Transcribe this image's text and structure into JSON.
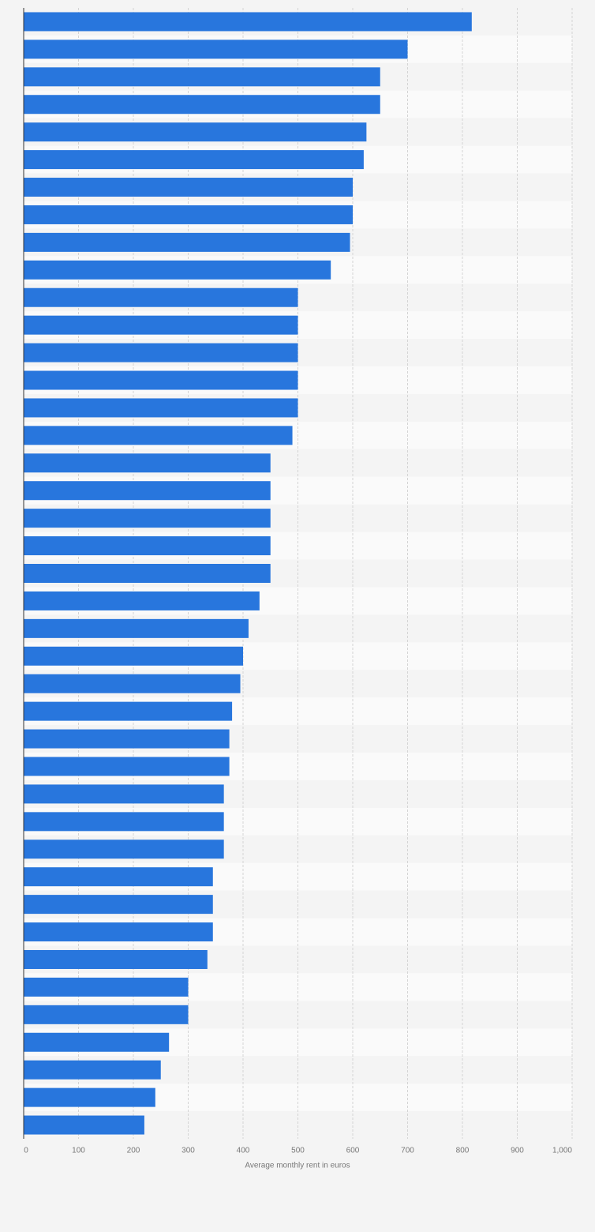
{
  "chart_data": {
    "type": "bar",
    "orientation": "horizontal",
    "x_label": "Average monthly rent in euros",
    "categories": [
      null,
      null,
      null,
      null,
      null,
      null,
      null,
      null,
      null,
      null,
      null,
      null,
      null,
      null,
      null,
      null,
      null,
      null,
      null,
      null,
      null,
      null,
      null,
      null,
      null,
      null,
      null,
      null,
      null,
      null,
      null,
      null,
      null,
      null,
      null,
      null,
      null,
      null,
      null,
      null,
      null
    ],
    "values": [
      817,
      700,
      650,
      650,
      625,
      620,
      600,
      600,
      595,
      560,
      500,
      500,
      500,
      500,
      500,
      490,
      450,
      450,
      450,
      450,
      450,
      430,
      410,
      400,
      395,
      380,
      375,
      375,
      365,
      365,
      365,
      345,
      345,
      345,
      335,
      300,
      300,
      265,
      250,
      240,
      220
    ],
    "color": "#2876dd",
    "xlim": [
      0,
      1000
    ],
    "xticks": [
      0,
      100,
      200,
      300,
      400,
      500,
      600,
      700,
      800,
      900,
      {
        "value": 1000,
        "label": "1,000"
      }
    ],
    "grid": true
  }
}
